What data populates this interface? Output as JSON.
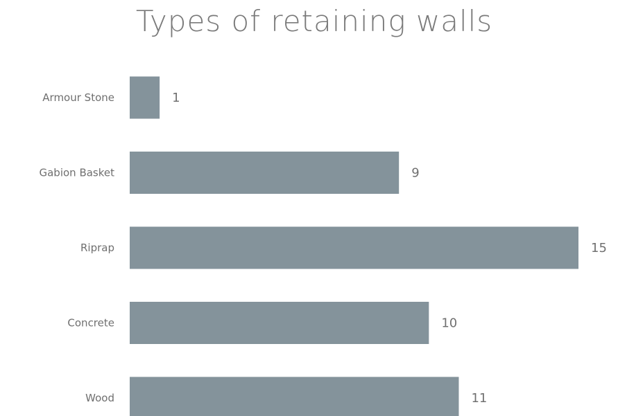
{
  "chart_data": {
    "type": "bar",
    "orientation": "horizontal",
    "title": "Types of retaining  walls",
    "categories": [
      "Armour Stone",
      "Gabion Basket",
      "Riprap",
      "Concrete",
      "Wood"
    ],
    "values": [
      1,
      9,
      15,
      10,
      11
    ],
    "xlim": [
      0,
      15
    ],
    "grid": false,
    "legend": "none",
    "bar_color": "#84939b",
    "data_labels": true
  }
}
